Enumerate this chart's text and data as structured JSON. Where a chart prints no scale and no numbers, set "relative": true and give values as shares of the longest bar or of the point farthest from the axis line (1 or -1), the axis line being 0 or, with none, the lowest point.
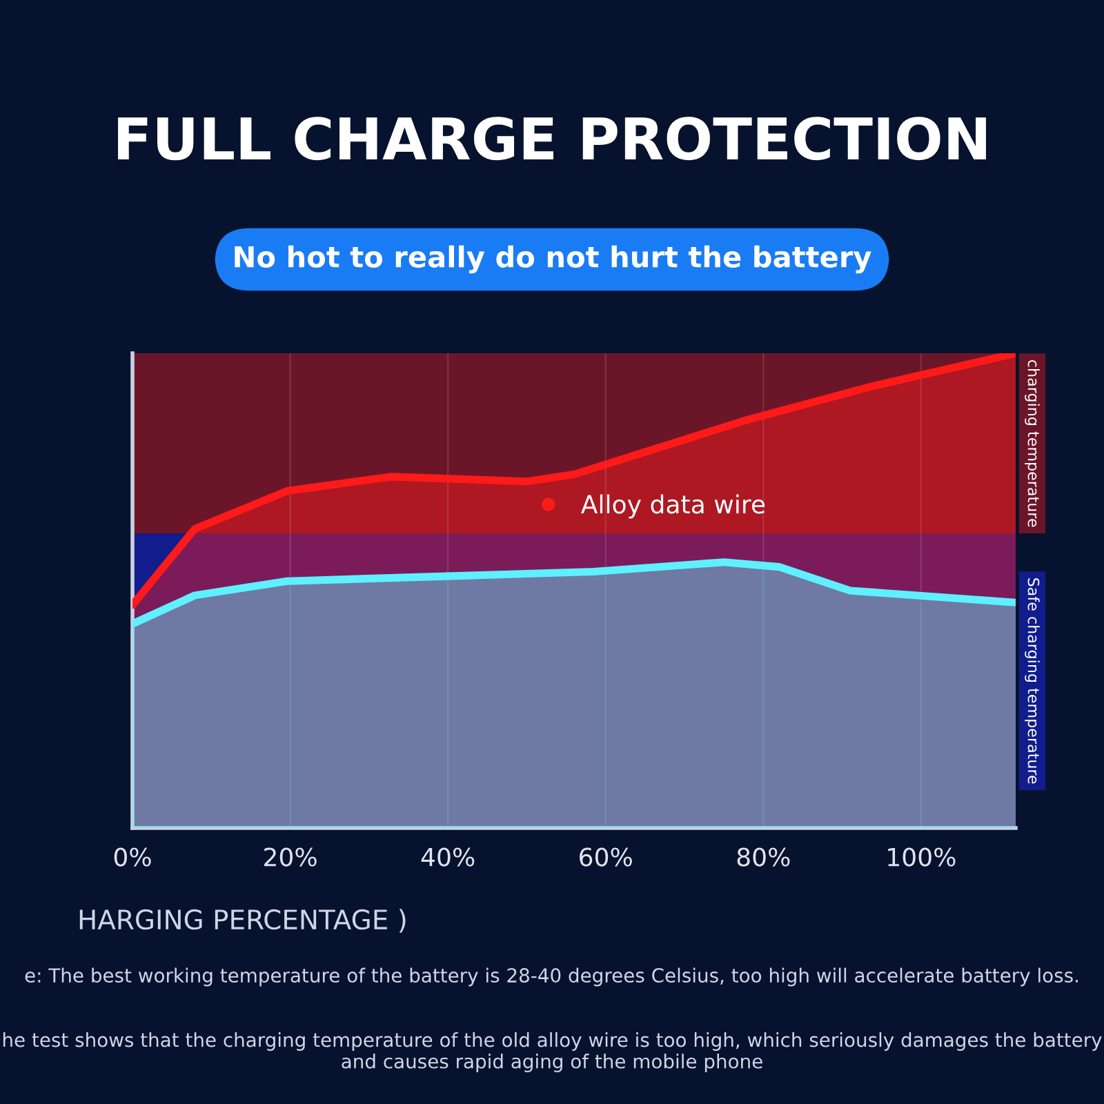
{
  "chart_data": {
    "type": "area",
    "title": "FULL CHARGE PROTECTION",
    "subtitle": "No hot to really do not hurt the battery",
    "xlabel": "HARGING PERCENTAGE )",
    "annotations": [
      "e: The best working temperature of the battery is 28-40 degrees Celsius, too high will accelerate battery loss.",
      "he test shows that the charging temperature of the old alloy wire is too high, which seriously damages the battery and causes rapid aging of the mobile phone"
    ],
    "relative": true,
    "xlim": [
      0,
      112
    ],
    "xticks": [
      {
        "value": 0,
        "label": "0%"
      },
      {
        "value": 20,
        "label": "20%"
      },
      {
        "value": 40,
        "label": "40%"
      },
      {
        "value": 60,
        "label": "60%"
      },
      {
        "value": 80,
        "label": "80%"
      },
      {
        "value": 100,
        "label": "100%"
      }
    ],
    "series": [
      {
        "name": "Alloy data wire",
        "color": "#ff1a1a",
        "x": [
          0,
          7.9,
          19.6,
          32.8,
          50,
          56,
          78,
          93.7,
          112
        ],
        "values": [
          0.47,
          0.63,
          0.71,
          0.74,
          0.73,
          0.745,
          0.86,
          0.93,
          1.0
        ]
      },
      {
        "color": "#5ef0ff",
        "x": [
          0,
          7.9,
          19.6,
          39,
          58.5,
          75,
          82,
          91,
          112
        ],
        "values": [
          0.43,
          0.49,
          0.52,
          0.53,
          0.54,
          0.56,
          0.55,
          0.5,
          0.475
        ]
      }
    ],
    "bands": [
      {
        "axis": "y",
        "from": 0.62,
        "to": 1.0,
        "label": "charging temperature",
        "color": "#6b1628"
      },
      {
        "axis": "y",
        "from": 0,
        "to": 0.62,
        "label": "Safe charging temperature",
        "color": "#111d8c"
      }
    ],
    "grid": true,
    "legend": "top"
  }
}
